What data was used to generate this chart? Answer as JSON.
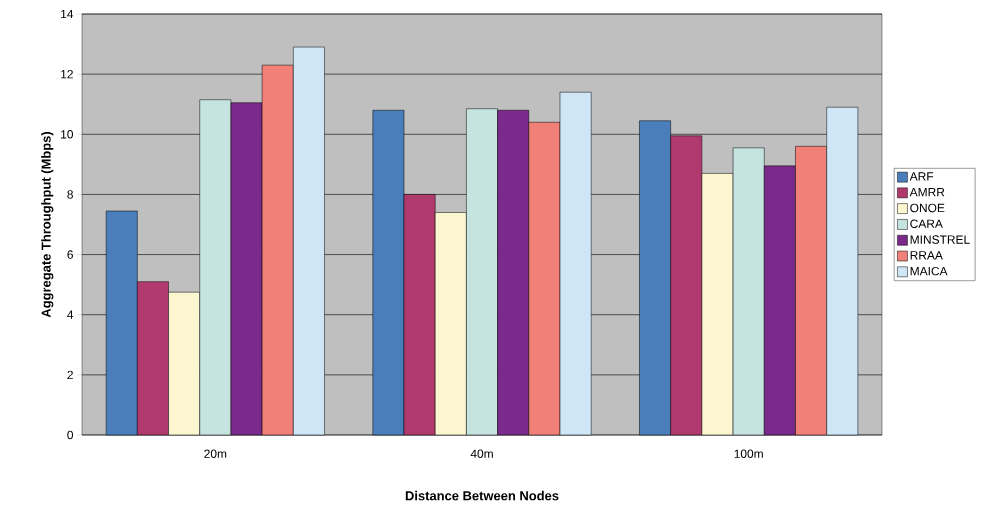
{
  "chart_data": {
    "type": "bar",
    "xlabel": "Distance Between Nodes",
    "ylabel": "Aggregate Throughput (Mbps)",
    "categories": [
      "20m",
      "40m",
      "100m"
    ],
    "series": [
      {
        "name": "ARF",
        "color": "#4a7ebb",
        "values": [
          7.45,
          10.8,
          10.45
        ]
      },
      {
        "name": "AMRR",
        "color": "#b03a6e",
        "values": [
          5.1,
          8.0,
          9.95
        ]
      },
      {
        "name": "ONOE",
        "color": "#fbf5d0",
        "values": [
          4.75,
          7.4,
          8.7
        ]
      },
      {
        "name": "CARA",
        "color": "#c5e4e0",
        "values": [
          11.15,
          10.85,
          9.55
        ]
      },
      {
        "name": "MINSTREL",
        "color": "#7a2a8a",
        "values": [
          11.05,
          10.8,
          8.95
        ]
      },
      {
        "name": "RRAA",
        "color": "#f08078",
        "values": [
          12.3,
          10.4,
          9.6
        ]
      },
      {
        "name": "MAICA",
        "color": "#cfe6f7",
        "values": [
          12.9,
          11.4,
          10.9
        ]
      }
    ],
    "ylim": [
      0,
      14
    ],
    "yticks": [
      0,
      2,
      4,
      6,
      8,
      10,
      12,
      14
    ],
    "grid": "y",
    "legend": "right"
  }
}
